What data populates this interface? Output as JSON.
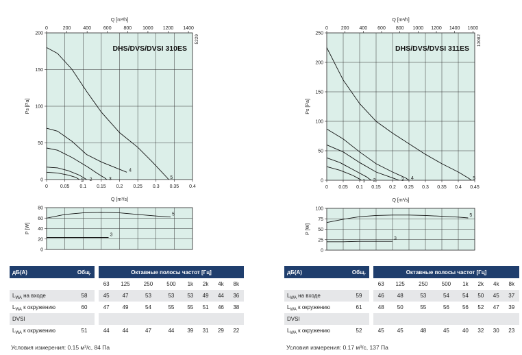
{
  "panels": [
    {
      "id": "left",
      "chart_title": "DHS/DVS/DVSI 310ES",
      "figure_code": "5229",
      "top_axis_label": "Q [m³/h]",
      "top_ticks": [
        "0",
        "200",
        "400",
        "600",
        "800",
        "1000",
        "1200",
        "1400"
      ],
      "bottom_axis_label": "Q [m³/s]",
      "y_axis_label": "Ps [Pa]",
      "power_axis_label": "P [W]",
      "table": {
        "title_col": "дБ(А)",
        "total_col": "Общ.",
        "octave_header": "Октавные полосы частот [Гц]",
        "freqs": [
          "63",
          "125",
          "250",
          "500",
          "1k",
          "2k",
          "4k",
          "8k"
        ],
        "rows": [
          {
            "label_sub": "WA",
            "label_rest": "на входе",
            "total": "58",
            "values": [
              "45",
              "47",
              "53",
              "53",
              "53",
              "49",
              "44",
              "36"
            ]
          },
          {
            "label_sub": "WA",
            "label_rest": "к окружению",
            "total": "60",
            "values": [
              "47",
              "49",
              "54",
              "55",
              "55",
              "51",
              "46",
              "38"
            ]
          },
          {
            "section": "DVSI"
          },
          {
            "label_sub": "WA",
            "label_rest": "к окружению",
            "total": "51",
            "values": [
              "44",
              "44",
              "47",
              "44",
              "39",
              "31",
              "29",
              "22"
            ]
          }
        ]
      },
      "conditions": "Условия измерения: 0.15 м³/с, 84 Па"
    },
    {
      "id": "right",
      "chart_title": "DHS/DVS/DVSI 311ES",
      "figure_code": "13082",
      "top_axis_label": "Q [m³/h]",
      "top_ticks": [
        "0",
        "200",
        "400",
        "600",
        "800",
        "1000",
        "1200",
        "1400",
        "1600"
      ],
      "bottom_axis_label": "Q [m³/s]",
      "y_axis_label": "Ps [Pa]",
      "power_axis_label": "P [W]",
      "table": {
        "title_col": "дБ(А)",
        "total_col": "Общ.",
        "octave_header": "Октавные полосы частот [Гц]",
        "freqs": [
          "63",
          "125",
          "250",
          "500",
          "1k",
          "2k",
          "4k",
          "8k"
        ],
        "rows": [
          {
            "label_sub": "WA",
            "label_rest": "на входе",
            "total": "59",
            "values": [
              "46",
              "48",
              "53",
              "54",
              "54",
              "50",
              "45",
              "37"
            ]
          },
          {
            "label_sub": "WA",
            "label_rest": "к окружению",
            "total": "61",
            "values": [
              "48",
              "50",
              "55",
              "56",
              "56",
              "52",
              "47",
              "39"
            ]
          },
          {
            "section": "DVSI"
          },
          {
            "label_sub": "WA",
            "label_rest": "к окружению",
            "total": "52",
            "values": [
              "45",
              "45",
              "48",
              "45",
              "40",
              "32",
              "30",
              "23"
            ]
          }
        ]
      },
      "conditions": "Условия измерения: 0.17 м³/с, 137 Па"
    }
  ],
  "chart_data": [
    {
      "type": "line",
      "title": "DHS/DVS/DVSI 310ES",
      "xlabel": "Q [m³/s]",
      "ylabel": "Ps [Pa]",
      "xlim": [
        0,
        0.4
      ],
      "ylim": [
        0,
        200
      ],
      "x_ticks": [
        "0",
        "0.05",
        "0.1",
        "0.15",
        "0.2",
        "0.25",
        "0.3",
        "0.35",
        "0.4"
      ],
      "y_ticks": [
        "0",
        "50",
        "100",
        "150",
        "200"
      ],
      "grid": true,
      "series": [
        {
          "name": "1",
          "points": [
            [
              0,
              10
            ],
            [
              0.03,
              9
            ],
            [
              0.06,
              6
            ],
            [
              0.08,
              3
            ],
            [
              0.09,
              0
            ]
          ]
        },
        {
          "name": "2",
          "points": [
            [
              0,
              17
            ],
            [
              0.03,
              16
            ],
            [
              0.06,
              12
            ],
            [
              0.09,
              6
            ],
            [
              0.11,
              0
            ]
          ]
        },
        {
          "name": "3",
          "points": [
            [
              0,
              43
            ],
            [
              0.03,
              40
            ],
            [
              0.07,
              30
            ],
            [
              0.11,
              18
            ],
            [
              0.14,
              8
            ],
            [
              0.16,
              2
            ],
            [
              0.165,
              0
            ]
          ]
        },
        {
          "name": "4",
          "points": [
            [
              0,
              70
            ],
            [
              0.03,
              66
            ],
            [
              0.07,
              52
            ],
            [
              0.11,
              34
            ],
            [
              0.15,
              24
            ],
            [
              0.19,
              16
            ],
            [
              0.22,
              10
            ]
          ]
        },
        {
          "name": "5",
          "points": [
            [
              0,
              180
            ],
            [
              0.03,
              172
            ],
            [
              0.07,
              150
            ],
            [
              0.11,
              120
            ],
            [
              0.15,
              92
            ],
            [
              0.2,
              64
            ],
            [
              0.25,
              44
            ],
            [
              0.29,
              24
            ],
            [
              0.32,
              8
            ],
            [
              0.335,
              0
            ]
          ]
        }
      ]
    },
    {
      "type": "line",
      "title": "",
      "xlabel": "",
      "ylabel": "P [W]",
      "xlim": [
        0,
        0.4
      ],
      "ylim": [
        0,
        80
      ],
      "y_ticks": [
        "0",
        "20",
        "40",
        "60",
        "80"
      ],
      "grid": true,
      "series": [
        {
          "name": "5",
          "points": [
            [
              0,
              60
            ],
            [
              0.05,
              67
            ],
            [
              0.1,
              70
            ],
            [
              0.15,
              71
            ],
            [
              0.2,
              70
            ],
            [
              0.25,
              67
            ],
            [
              0.3,
              64
            ],
            [
              0.34,
              62
            ]
          ]
        },
        {
          "name": "3",
          "points": [
            [
              0,
              23
            ],
            [
              0.05,
              23
            ],
            [
              0.1,
              23
            ],
            [
              0.17,
              23
            ]
          ]
        }
      ]
    },
    {
      "type": "line",
      "title": "DHS/DVS/DVSI 311ES",
      "xlabel": "Q [m³/s]",
      "ylabel": "Ps [Pa]",
      "xlim": [
        0,
        0.45
      ],
      "ylim": [
        0,
        250
      ],
      "x_ticks": [
        "0",
        "0.05",
        "0.1",
        "0.15",
        "0.2",
        "0.25",
        "0.3",
        "0.35",
        "0.4",
        "0.45"
      ],
      "y_ticks": [
        "0",
        "50",
        "100",
        "150",
        "200",
        "250"
      ],
      "grid": true,
      "series": [
        {
          "name": "1",
          "points": [
            [
              0,
              23
            ],
            [
              0.04,
              17
            ],
            [
              0.08,
              8
            ],
            [
              0.1,
              2
            ],
            [
              0.105,
              0
            ]
          ]
        },
        {
          "name": "2",
          "points": [
            [
              0,
              38
            ],
            [
              0.04,
              30
            ],
            [
              0.08,
              18
            ],
            [
              0.12,
              6
            ],
            [
              0.135,
              0
            ]
          ]
        },
        {
          "name": "3",
          "points": [
            [
              0,
              60
            ],
            [
              0.05,
              48
            ],
            [
              0.1,
              30
            ],
            [
              0.15,
              14
            ],
            [
              0.2,
              4
            ],
            [
              0.22,
              0
            ]
          ]
        },
        {
          "name": "4",
          "points": [
            [
              0,
              87
            ],
            [
              0.05,
              70
            ],
            [
              0.1,
              48
            ],
            [
              0.15,
              28
            ],
            [
              0.2,
              14
            ],
            [
              0.24,
              4
            ],
            [
              0.25,
              0
            ]
          ]
        },
        {
          "name": "5",
          "points": [
            [
              0,
              225
            ],
            [
              0.05,
              170
            ],
            [
              0.1,
              130
            ],
            [
              0.15,
              100
            ],
            [
              0.2,
              80
            ],
            [
              0.25,
              62
            ],
            [
              0.3,
              44
            ],
            [
              0.35,
              28
            ],
            [
              0.4,
              14
            ],
            [
              0.43,
              4
            ],
            [
              0.44,
              0
            ]
          ]
        }
      ]
    },
    {
      "type": "line",
      "title": "",
      "xlabel": "",
      "ylabel": "P [W]",
      "xlim": [
        0,
        0.45
      ],
      "ylim": [
        0,
        100
      ],
      "y_ticks": [
        "0",
        "25",
        "50",
        "75",
        "100"
      ],
      "grid": true,
      "series": [
        {
          "name": "5",
          "points": [
            [
              0,
              66
            ],
            [
              0.05,
              74
            ],
            [
              0.1,
              80
            ],
            [
              0.15,
              83
            ],
            [
              0.2,
              84
            ],
            [
              0.25,
              84
            ],
            [
              0.3,
              83
            ],
            [
              0.35,
              81
            ],
            [
              0.4,
              79
            ],
            [
              0.43,
              77
            ]
          ]
        },
        {
          "name": "3",
          "points": [
            [
              0,
              20
            ],
            [
              0.05,
              20
            ],
            [
              0.1,
              21
            ],
            [
              0.15,
              21
            ],
            [
              0.2,
              21
            ]
          ]
        }
      ]
    }
  ]
}
